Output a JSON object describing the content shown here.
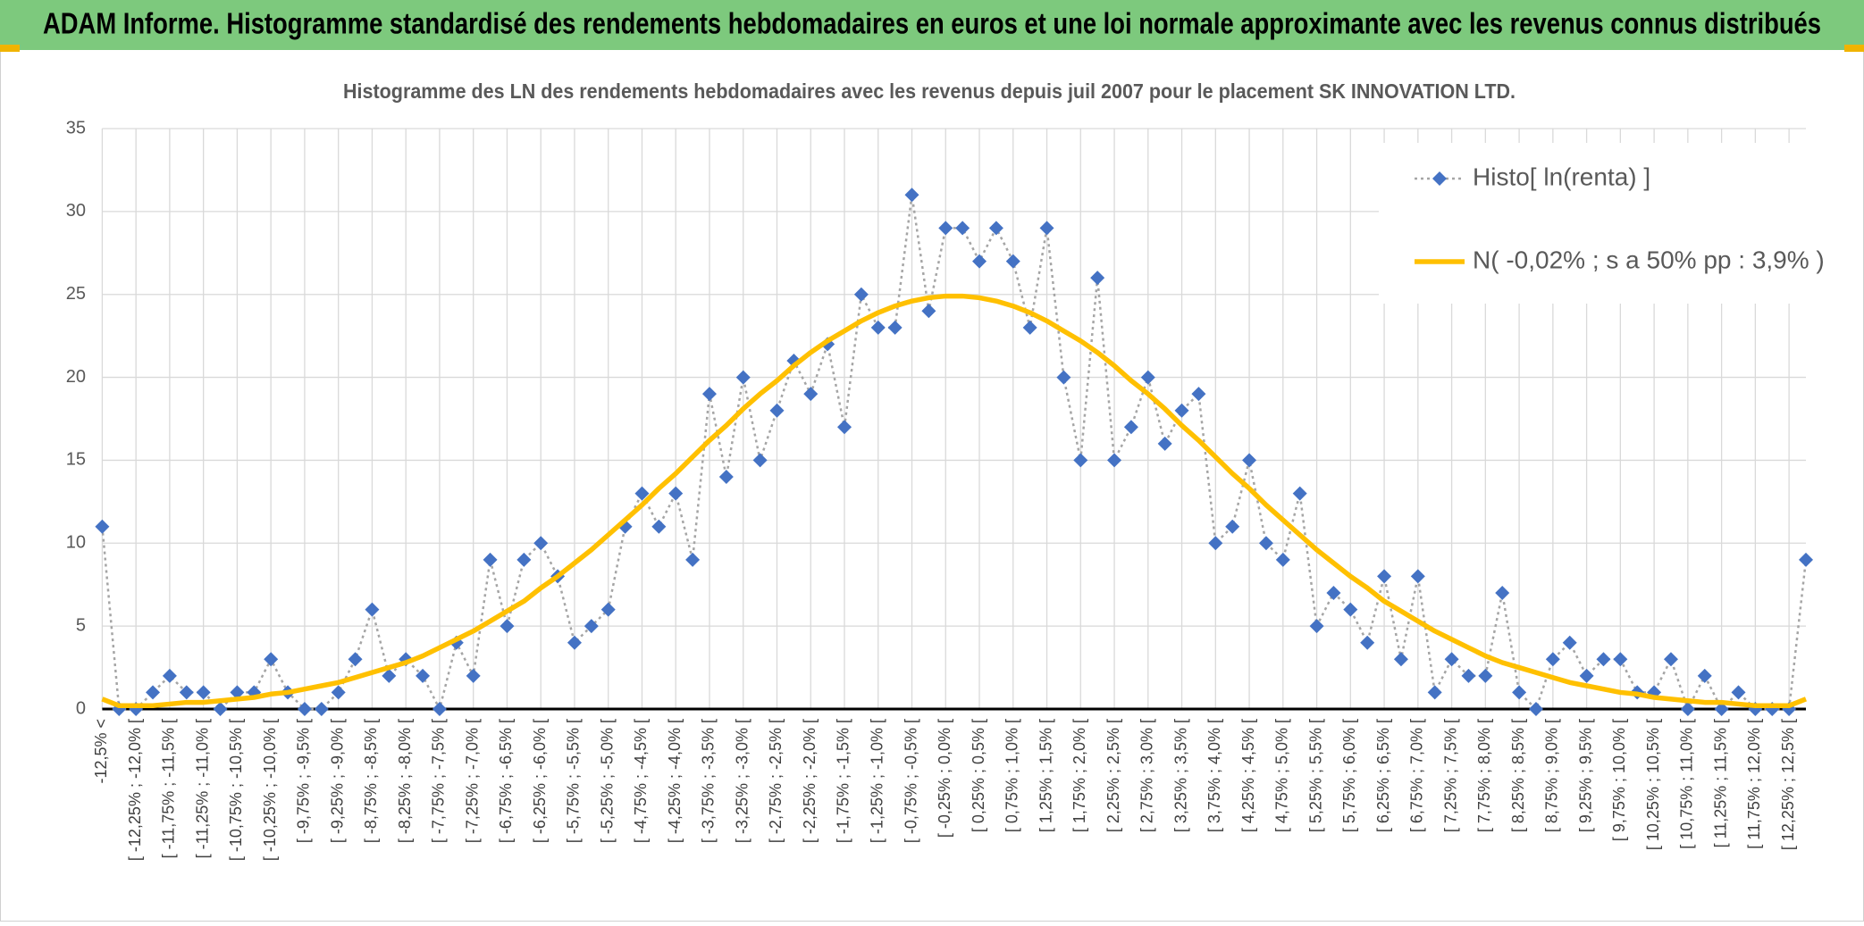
{
  "chart_data": {
    "type": "line",
    "title": "ADAM Informe. Histogramme standardisé des rendements hebdomadaires en euros et une loi normale approximante avec les revenus connus distribués",
    "subtitle": "Histogramme des LN des rendements hebdomadaires avec les revenus depuis juil 2007 pour le placement SK INNOVATION LTD.",
    "categories": [
      "-12,5% <",
      null,
      "[ -12,25% ; -12,0% [",
      null,
      "[ -11,75% ; -11,5% [",
      null,
      "[ -11,25% ; -11,0% [",
      null,
      "[ -10,75% ; -10,5% [",
      null,
      "[ -10,25% ; -10,0% [",
      null,
      "[ -9,75% ; -9,5% [",
      null,
      "[ -9,25% ; -9,0% [",
      null,
      "[ -8,75% ; -8,5% [",
      null,
      "[ -8,25% ; -8,0% [",
      null,
      "[ -7,75% ; -7,5% [",
      null,
      "[ -7,25% ; -7,0% [",
      null,
      "[ -6,75% ; -6,5% [",
      null,
      "[ -6,25% ; -6,0% [",
      null,
      "[ -5,75% ; -5,5% [",
      null,
      "[ -5,25% ; -5,0% [",
      null,
      "[ -4,75% ; -4,5% [",
      null,
      "[ -4,25% ; -4,0% [",
      null,
      "[ -3,75% ; -3,5% [",
      null,
      "[ -3,25% ; -3,0% [",
      null,
      "[ -2,75% ; -2,5% [",
      null,
      "[ -2,25% ; -2,0% [",
      null,
      "[ -1,75% ; -1,5% [",
      null,
      "[ -1,25% ; -1,0% [",
      null,
      "[ -0,75% ; -0,5% [",
      null,
      "[ -0,25% ; 0,0% [",
      null,
      "[ 0,25% ; 0,5% [",
      null,
      "[ 0,75% ; 1,0% [",
      null,
      "[ 1,25% ; 1,5% [",
      null,
      "[ 1,75% ; 2,0% [",
      null,
      "[ 2,25% ; 2,5% [",
      null,
      "[ 2,75% ; 3,0% [",
      null,
      "[ 3,25% ; 3,5% [",
      null,
      "[ 3,75% ; 4,0% [",
      null,
      "[ 4,25% ; 4,5% [",
      null,
      "[ 4,75% ; 5,0% [",
      null,
      "[ 5,25% ; 5,5% [",
      null,
      "[ 5,75% ; 6,0% [",
      null,
      "[ 6,25% ; 6,5% [",
      null,
      "[ 6,75% ; 7,0% [",
      null,
      "[ 7,25% ; 7,5% [",
      null,
      "[ 7,75% ; 8,0% [",
      null,
      "[ 8,25% ; 8,5% [",
      null,
      "[ 8,75% ; 9,0% [",
      null,
      "[ 9,25% ; 9,5% [",
      null,
      "[ 9,75% ; 10,0% [",
      null,
      "[ 10,25% ; 10,5% [",
      null,
      "[ 10,75% ; 11,0% [",
      null,
      "[ 11,25% ; 11,5% [",
      null,
      "[ 11,75% ; 12,0% [",
      null,
      "[ 12,25% ; 12,5% [",
      null
    ],
    "series": [
      {
        "name": "Histo[ ln(renta) ]",
        "color": "#4472c4",
        "line_color": "#a5a5a5",
        "line_style": "dotted",
        "marker": "diamond",
        "values": [
          11,
          0,
          0,
          1,
          2,
          1,
          1,
          0,
          1,
          1,
          3,
          1,
          0,
          0,
          1,
          3,
          6,
          2,
          3,
          2,
          0,
          4,
          2,
          9,
          5,
          9,
          10,
          8,
          4,
          5,
          6,
          11,
          13,
          11,
          13,
          9,
          19,
          14,
          20,
          15,
          18,
          21,
          19,
          22,
          17,
          25,
          23,
          23,
          31,
          24,
          29,
          29,
          27,
          29,
          27,
          23,
          29,
          20,
          15,
          26,
          15,
          17,
          20,
          16,
          18,
          19,
          10,
          11,
          15,
          10,
          9,
          13,
          5,
          7,
          6,
          4,
          8,
          3,
          8,
          1,
          3,
          2,
          2,
          7,
          1,
          0,
          3,
          4,
          2,
          3,
          3,
          1,
          1,
          3,
          0,
          2,
          0,
          1,
          0,
          0,
          0,
          9
        ]
      },
      {
        "name": "N( -0,02% ; s a 50% pp : 3,9% )",
        "color": "#ffc000",
        "line_style": "solid",
        "values": [
          0.6,
          0.2,
          0.2,
          0.2,
          0.3,
          0.4,
          0.4,
          0.5,
          0.6,
          0.7,
          0.9,
          1.0,
          1.2,
          1.4,
          1.6,
          1.9,
          2.2,
          2.5,
          2.8,
          3.2,
          3.7,
          4.2,
          4.7,
          5.3,
          5.9,
          6.5,
          7.3,
          8.0,
          8.8,
          9.6,
          10.5,
          11.4,
          12.3,
          13.3,
          14.2,
          15.2,
          16.2,
          17.1,
          18.1,
          19.0,
          19.8,
          20.7,
          21.5,
          22.2,
          22.8,
          23.4,
          23.9,
          24.3,
          24.6,
          24.8,
          24.9,
          24.9,
          24.8,
          24.6,
          24.3,
          23.9,
          23.4,
          22.8,
          22.2,
          21.5,
          20.7,
          19.8,
          19.0,
          18.1,
          17.1,
          16.2,
          15.2,
          14.2,
          13.3,
          12.3,
          11.4,
          10.5,
          9.6,
          8.8,
          8.0,
          7.3,
          6.5,
          5.9,
          5.3,
          4.7,
          4.2,
          3.7,
          3.2,
          2.8,
          2.5,
          2.2,
          1.9,
          1.6,
          1.4,
          1.2,
          1.0,
          0.9,
          0.7,
          0.6,
          0.5,
          0.4,
          0.4,
          0.3,
          0.2,
          0.2,
          0.2,
          0.6
        ]
      }
    ],
    "ylim": [
      0,
      35
    ],
    "yticks": [
      0,
      5,
      10,
      15,
      20,
      25,
      30,
      35
    ],
    "grid": true,
    "legend": "top-right"
  }
}
